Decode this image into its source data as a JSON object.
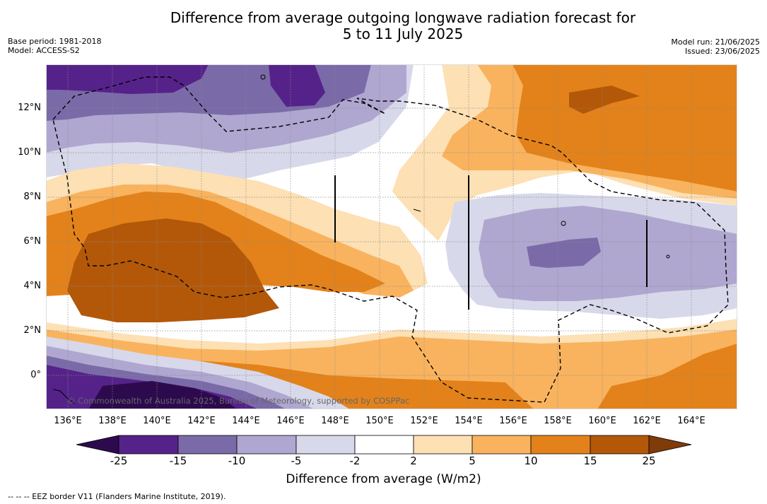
{
  "header": {
    "title_line1": "Difference from average outgoing longwave radiation forecast for",
    "title_line2": "5 to 11 July 2025",
    "base_period": "Base period: 1981-2018",
    "model": "Model: ACCESS-S2",
    "model_run": "Model run: 21/06/2025",
    "issued": "Issued: 23/06/2025"
  },
  "map": {
    "lat_labels": [
      "12°N",
      "10°N",
      "8°N",
      "6°N",
      "4°N",
      "2°N",
      "0°"
    ],
    "lon_labels": [
      "136°E",
      "138°E",
      "140°E",
      "142°E",
      "144°E",
      "146°E",
      "148°E",
      "150°E",
      "152°E",
      "154°E",
      "156°E",
      "158°E",
      "160°E",
      "162°E",
      "164°E"
    ],
    "copyright": "© Commonwealth of Australia 2025, Bureau of Meteorology, supported by COSPPac"
  },
  "colorbar": {
    "tick_labels": [
      "-25",
      "-15",
      "-10",
      "-5",
      "-2",
      "2",
      "5",
      "10",
      "15",
      "25"
    ],
    "colors": [
      "#2d0a4e",
      "#55228a",
      "#7b6aa8",
      "#afa7d0",
      "#d8d8eb",
      "#ffffff",
      "#fde0b4",
      "#f9b35e",
      "#e3821a",
      "#b35809",
      "#7f3b08"
    ],
    "title": "Difference from average (W/m2)"
  },
  "footnote": "-- -- -- EEZ border V11 (Flanders Marine Institute, 2019)."
}
